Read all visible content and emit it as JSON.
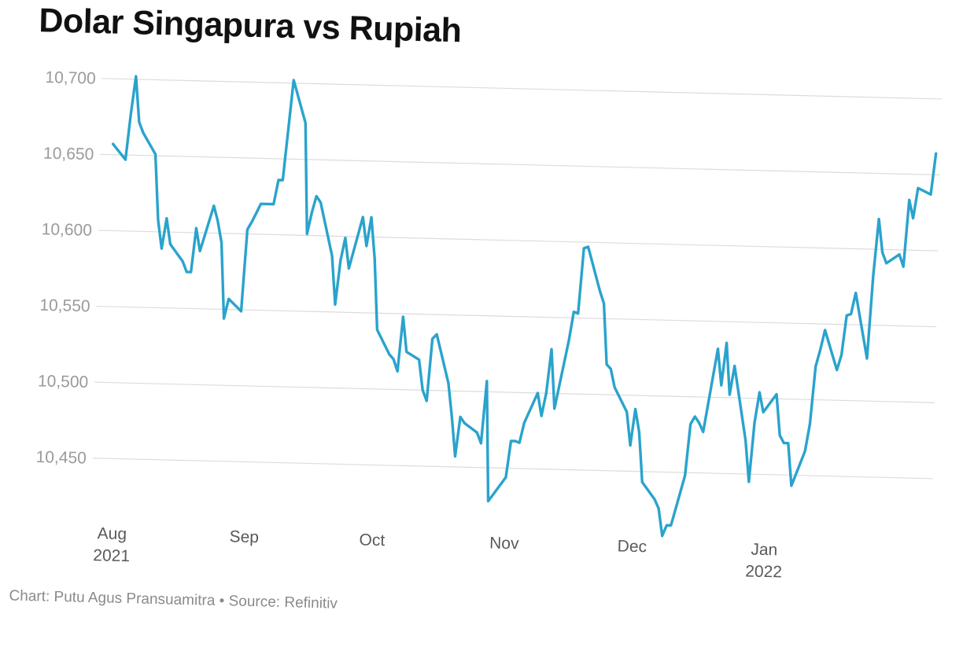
{
  "title": "Dolar Singapura vs Rupiah",
  "footer": {
    "credit": "Chart: Putu Agus Pransuamitra",
    "separator": "•",
    "source": "Source: Refinitiv"
  },
  "colors": {
    "line": "#2aa3cc",
    "grid": "#dcdcdc",
    "axis_text": "#9a9a9a",
    "tick_text": "#5a5a5a"
  },
  "chart_data": {
    "type": "line",
    "title": "Dolar Singapura vs Rupiah",
    "xlabel": "",
    "ylabel": "",
    "ylim": [
      10410,
      10705
    ],
    "y_ticks": [
      {
        "value": 10450,
        "label": "10,450"
      },
      {
        "value": 10500,
        "label": "10,500"
      },
      {
        "value": 10550,
        "label": "10,550"
      },
      {
        "value": 10600,
        "label": "10,600"
      },
      {
        "value": 10650,
        "label": "10,650"
      },
      {
        "value": 10700,
        "label": "10,700"
      }
    ],
    "x_ticks": [
      {
        "date": "2021-08-01",
        "label": "Aug",
        "sublabel": "2021"
      },
      {
        "date": "2021-09-01",
        "label": "Sep",
        "sublabel": ""
      },
      {
        "date": "2021-10-01",
        "label": "Oct",
        "sublabel": ""
      },
      {
        "date": "2021-11-01",
        "label": "Nov",
        "sublabel": ""
      },
      {
        "date": "2021-12-01",
        "label": "Dec",
        "sublabel": ""
      },
      {
        "date": "2022-01-01",
        "label": "Jan",
        "sublabel": "2022"
      }
    ],
    "grid": true,
    "legend": "none",
    "series": [
      {
        "points": [
          [
            "2021-07-30",
            10657
          ],
          [
            "2021-08-02",
            10647
          ],
          [
            "2021-08-03",
            10677
          ],
          [
            "2021-08-04",
            10702
          ],
          [
            "2021-08-05",
            10672
          ],
          [
            "2021-08-06",
            10665
          ],
          [
            "2021-08-09",
            10651
          ],
          [
            "2021-08-10",
            10608
          ],
          [
            "2021-08-11",
            10589
          ],
          [
            "2021-08-12",
            10609
          ],
          [
            "2021-08-13",
            10592
          ],
          [
            "2021-08-16",
            10581
          ],
          [
            "2021-08-17",
            10574
          ],
          [
            "2021-08-18",
            10574
          ],
          [
            "2021-08-19",
            10603
          ],
          [
            "2021-08-20",
            10588
          ],
          [
            "2021-08-23",
            10618
          ],
          [
            "2021-08-24",
            10608
          ],
          [
            "2021-08-25",
            10594
          ],
          [
            "2021-08-26",
            10544
          ],
          [
            "2021-08-27",
            10557
          ],
          [
            "2021-08-30",
            10549
          ],
          [
            "2021-08-31",
            10603
          ],
          [
            "2021-09-01",
            10608
          ],
          [
            "2021-09-02",
            10614
          ],
          [
            "2021-09-03",
            10620
          ],
          [
            "2021-09-06",
            10620
          ],
          [
            "2021-09-07",
            10636
          ],
          [
            "2021-09-08",
            10636
          ],
          [
            "2021-09-09",
            10669
          ],
          [
            "2021-09-10",
            10702
          ],
          [
            "2021-09-13",
            10674
          ],
          [
            "2021-09-14",
            10601
          ],
          [
            "2021-09-15",
            10615
          ],
          [
            "2021-09-16",
            10626
          ],
          [
            "2021-09-17",
            10622
          ],
          [
            "2021-09-20",
            10587
          ],
          [
            "2021-09-21",
            10555
          ],
          [
            "2021-09-22",
            10584
          ],
          [
            "2021-09-23",
            10599
          ],
          [
            "2021-09-24",
            10579
          ],
          [
            "2021-09-27",
            10613
          ],
          [
            "2021-09-28",
            10594
          ],
          [
            "2021-09-29",
            10613
          ],
          [
            "2021-09-30",
            10586
          ],
          [
            "2021-10-01",
            10539
          ],
          [
            "2021-10-04",
            10523
          ],
          [
            "2021-10-05",
            10520
          ],
          [
            "2021-10-06",
            10512
          ],
          [
            "2021-10-07",
            10548
          ],
          [
            "2021-10-08",
            10525
          ],
          [
            "2021-10-11",
            10520
          ],
          [
            "2021-10-12",
            10500
          ],
          [
            "2021-10-13",
            10493
          ],
          [
            "2021-10-14",
            10534
          ],
          [
            "2021-10-15",
            10537
          ],
          [
            "2021-10-18",
            10505
          ],
          [
            "2021-10-19",
            10483
          ],
          [
            "2021-10-20",
            10457
          ],
          [
            "2021-10-21",
            10483
          ],
          [
            "2021-10-22",
            10479
          ],
          [
            "2021-10-25",
            10473
          ],
          [
            "2021-10-26",
            10466
          ],
          [
            "2021-10-27",
            10507
          ],
          [
            "2021-10-28",
            10428
          ],
          [
            "2021-10-29",
            10432
          ],
          [
            "2021-11-01",
            10444
          ],
          [
            "2021-11-02",
            10468
          ],
          [
            "2021-11-03",
            10468
          ],
          [
            "2021-11-04",
            10467
          ],
          [
            "2021-11-05",
            10480
          ],
          [
            "2021-11-08",
            10500
          ],
          [
            "2021-11-09",
            10485
          ],
          [
            "2021-11-10",
            10500
          ],
          [
            "2021-11-11",
            10529
          ],
          [
            "2021-11-12",
            10490
          ],
          [
            "2021-11-15",
            10535
          ],
          [
            "2021-11-16",
            10554
          ],
          [
            "2021-11-17",
            10553
          ],
          [
            "2021-11-18",
            10596
          ],
          [
            "2021-11-19",
            10597
          ],
          [
            "2021-11-22",
            10568
          ],
          [
            "2021-11-23",
            10560
          ],
          [
            "2021-11-24",
            10520
          ],
          [
            "2021-11-25",
            10517
          ],
          [
            "2021-11-26",
            10505
          ],
          [
            "2021-11-29",
            10489
          ],
          [
            "2021-11-30",
            10467
          ],
          [
            "2021-12-01",
            10491
          ],
          [
            "2021-12-02",
            10476
          ],
          [
            "2021-12-03",
            10443
          ],
          [
            "2021-12-06",
            10432
          ],
          [
            "2021-12-07",
            10426
          ],
          [
            "2021-12-08",
            10408
          ],
          [
            "2021-12-09",
            10415
          ],
          [
            "2021-12-10",
            10415
          ],
          [
            "2021-12-13",
            10448
          ],
          [
            "2021-12-14",
            10482
          ],
          [
            "2021-12-15",
            10487
          ],
          [
            "2021-12-16",
            10483
          ],
          [
            "2021-12-17",
            10477
          ],
          [
            "2021-12-20",
            10532
          ],
          [
            "2021-12-21",
            10508
          ],
          [
            "2021-12-22",
            10536
          ],
          [
            "2021-12-23",
            10502
          ],
          [
            "2021-12-24",
            10521
          ],
          [
            "2021-12-27",
            10472
          ],
          [
            "2021-12-28",
            10445
          ],
          [
            "2021-12-29",
            10484
          ],
          [
            "2021-12-30",
            10504
          ],
          [
            "2021-12-31",
            10491
          ],
          [
            "2022-01-03",
            10503
          ],
          [
            "2022-01-04",
            10476
          ],
          [
            "2022-01-05",
            10471
          ],
          [
            "2022-01-06",
            10471
          ],
          [
            "2022-01-07",
            10443
          ],
          [
            "2022-01-10",
            10466
          ],
          [
            "2022-01-11",
            10484
          ],
          [
            "2022-01-12",
            10522
          ],
          [
            "2022-01-13",
            10533
          ],
          [
            "2022-01-14",
            10546
          ],
          [
            "2022-01-17",
            10520
          ],
          [
            "2022-01-18",
            10530
          ],
          [
            "2022-01-19",
            10556
          ],
          [
            "2022-01-20",
            10557
          ],
          [
            "2022-01-21",
            10571
          ],
          [
            "2022-01-24",
            10528
          ],
          [
            "2022-01-25",
            10583
          ],
          [
            "2022-01-26",
            10620
          ],
          [
            "2022-01-27",
            10598
          ],
          [
            "2022-01-28",
            10591
          ],
          [
            "2022-01-31",
            10597
          ],
          [
            "2022-02-01",
            10589
          ],
          [
            "2022-02-02",
            10633
          ],
          [
            "2022-02-03",
            10621
          ],
          [
            "2022-02-04",
            10641
          ],
          [
            "2022-02-07",
            10637
          ],
          [
            "2022-02-08",
            10664
          ]
        ]
      }
    ]
  }
}
